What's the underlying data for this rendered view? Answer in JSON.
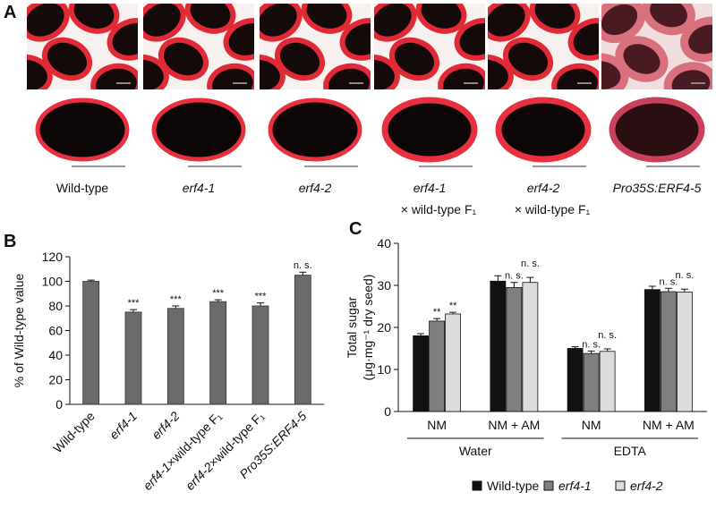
{
  "panel_a": {
    "label": "A",
    "captions": [
      [
        "Wild-type"
      ],
      [
        "erf4-1"
      ],
      [
        "erf4-2"
      ],
      [
        "erf4-1",
        "× wild-type F₁"
      ],
      [
        "erf4-2",
        "× wild-type F₁"
      ],
      [
        "Pro35S:ERF4-5"
      ]
    ],
    "italic_first": [
      false,
      true,
      true,
      true,
      true,
      true
    ]
  },
  "chart_data": [
    {
      "type": "bar",
      "panel_label": "B",
      "ylabel": "% of Wild-type value",
      "categories": [
        [
          "Wild-type"
        ],
        [
          "erf4-1"
        ],
        [
          "erf4-2"
        ],
        [
          "erf4-1",
          "×wild-type F₁"
        ],
        [
          "erf4-2",
          "×wild-type F₁"
        ],
        [
          "Pro35S:ERF4-5"
        ]
      ],
      "italic_first": [
        false,
        true,
        true,
        true,
        true,
        true
      ],
      "values": [
        100,
        75,
        78,
        83.5,
        80,
        105
      ],
      "errors": [
        1,
        2,
        2,
        1.5,
        2.5,
        2.5
      ],
      "annotations": [
        null,
        "***",
        "***",
        "***",
        "***",
        "n. s."
      ],
      "color": "#6b6b6b",
      "ylim": [
        0,
        120
      ],
      "yticks": [
        0,
        20,
        40,
        60,
        80,
        100,
        120
      ]
    },
    {
      "type": "grouped-bar",
      "panel_label": "C",
      "ylabel": [
        "Total sugar",
        "(μg·mg⁻¹ dry seed)"
      ],
      "categories": [
        "NM",
        "NM + AM",
        "NM",
        "NM + AM"
      ],
      "groups": [
        "Water",
        "EDTA"
      ],
      "series": [
        {
          "name": "Wild-type",
          "italic": false,
          "color": "#111111",
          "values": [
            18,
            31,
            15,
            29
          ],
          "errors": [
            0.5,
            1.3,
            0.4,
            0.8
          ],
          "annotations": [
            null,
            null,
            null,
            null
          ]
        },
        {
          "name": "erf4-1",
          "italic": true,
          "color": "#7f7f7f",
          "values": [
            21.5,
            29.5,
            13.8,
            28.5
          ],
          "errors": [
            0.6,
            1.2,
            0.6,
            0.8
          ],
          "annotations": [
            "**",
            "n. s.",
            "n. s.",
            "n. s."
          ]
        },
        {
          "name": "erf4-2",
          "italic": true,
          "color": "#dcdcdc",
          "values": [
            23.2,
            30.7,
            14.3,
            28.4
          ],
          "errors": [
            0.4,
            1.2,
            0.6,
            0.7
          ],
          "annotations": [
            "**",
            "n. s.",
            "n. s.",
            "n. s."
          ]
        }
      ],
      "ylim": [
        0,
        40
      ],
      "yticks": [
        0,
        10,
        20,
        30,
        40
      ]
    }
  ]
}
